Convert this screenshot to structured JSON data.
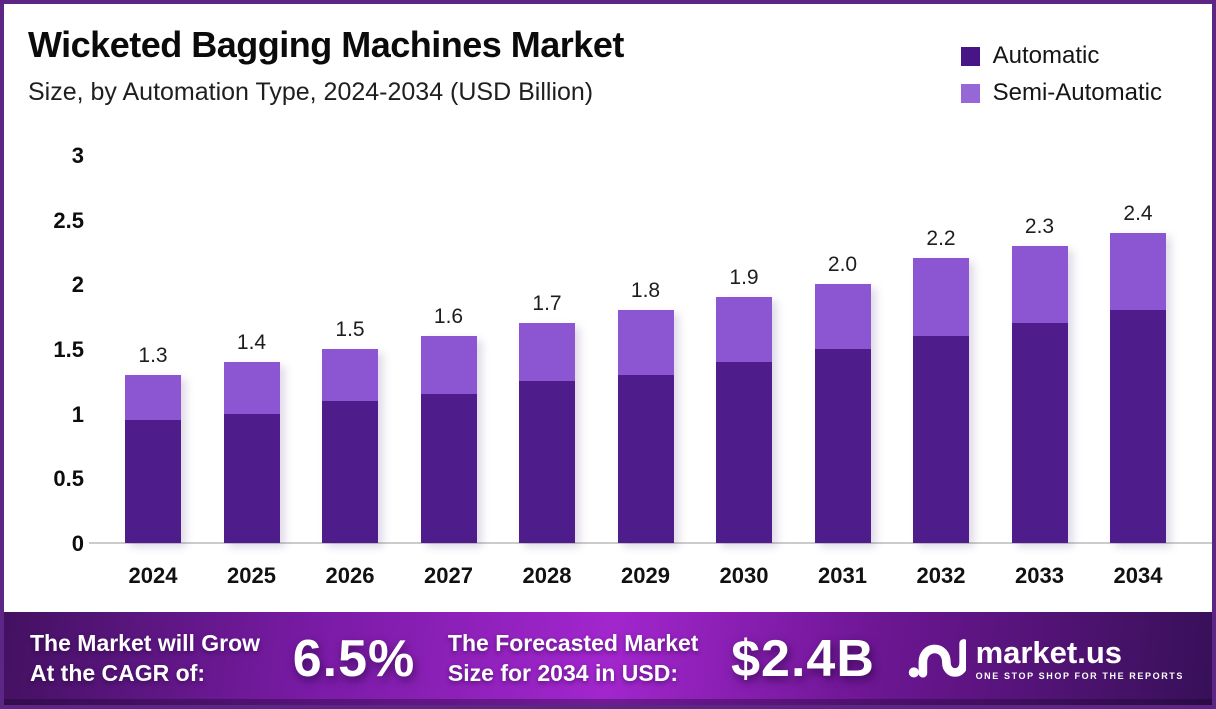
{
  "page": {
    "background": "#ffffff",
    "border_color": "#5C2686"
  },
  "header": {
    "title": "Wicketed Bagging Machines Market",
    "subtitle": "Size, by Automation Type, 2024-2034 (USD Billion)"
  },
  "legend": {
    "items": [
      {
        "label": "Automatic",
        "color": "#481586"
      },
      {
        "label": "Semi-Automatic",
        "color": "#9668D6"
      }
    ]
  },
  "chart_data": {
    "type": "bar",
    "stacked": true,
    "title": "Wicketed Bagging Machines Market Size, by Automation Type, 2024-2034 (USD Billion)",
    "categories": [
      "2024",
      "2025",
      "2026",
      "2027",
      "2028",
      "2029",
      "2030",
      "2031",
      "2032",
      "2033",
      "2034"
    ],
    "series": [
      {
        "name": "Automatic",
        "color": "#4E1D8B",
        "values": [
          0.95,
          1.0,
          1.1,
          1.15,
          1.25,
          1.3,
          1.4,
          1.5,
          1.6,
          1.7,
          1.8
        ]
      },
      {
        "name": "Semi-Automatic",
        "color": "#8C55D2",
        "values": [
          0.35,
          0.4,
          0.4,
          0.45,
          0.45,
          0.5,
          0.5,
          0.5,
          0.6,
          0.6,
          0.6
        ]
      }
    ],
    "total_labels": [
      "1.3",
      "1.4",
      "1.5",
      "1.6",
      "1.7",
      "1.8",
      "1.9",
      "2.0",
      "2.2",
      "2.3",
      "2.4"
    ],
    "xlabel": "",
    "ylabel": "",
    "ylim": [
      0,
      3
    ],
    "y_ticks": [
      0,
      0.5,
      1,
      1.5,
      2,
      2.5,
      3
    ],
    "grid": false,
    "legend_position": "top-right"
  },
  "banner": {
    "cagr_line1": "The Market will Grow",
    "cagr_line2": "At the CAGR of:",
    "cagr_value": "6.5%",
    "forecast_line1": "The Forecasted Market",
    "forecast_line2": "Size for 2034 in USD:",
    "forecast_value": "$2.4B",
    "logo_text": "market.us",
    "logo_tagline": "ONE STOP SHOP FOR THE REPORTS",
    "gradient": [
      "#431161",
      "#7A1BA6",
      "#A226CD",
      "#6D1693",
      "#371058"
    ]
  }
}
